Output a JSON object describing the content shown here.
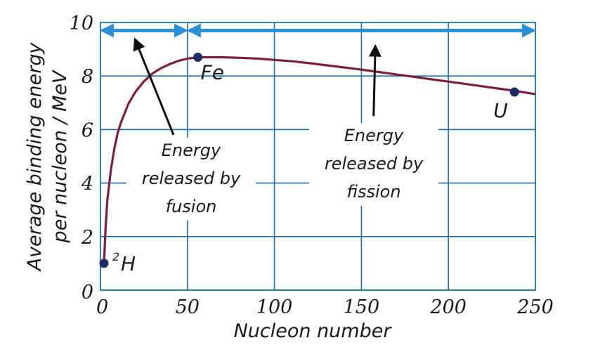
{
  "colors": {
    "grid": "#1f6fa8",
    "curve": "#7a1f3d",
    "point": "#1f2a6b",
    "range_arrow": "#2b8fd6",
    "annotation_arrow": "#111111"
  },
  "chart_data": {
    "type": "line",
    "title": "",
    "xlabel": "Nucleon number",
    "ylabel": [
      "Average binding energy",
      "per nucleon / MeV"
    ],
    "xlim": [
      0,
      250
    ],
    "ylim": [
      0,
      10
    ],
    "x_ticks": [
      "0",
      "50",
      "100",
      "150",
      "200",
      "250"
    ],
    "y_ticks": [
      "0",
      "2",
      "4",
      "6",
      "8",
      "10"
    ],
    "grid": true,
    "series": [
      {
        "name": "binding energy per nucleon",
        "x": [
          2,
          3,
          4,
          6,
          8,
          10,
          12,
          16,
          20,
          25,
          30,
          35,
          40,
          45,
          50,
          56,
          60,
          70,
          80,
          90,
          100,
          110,
          120,
          130,
          140,
          150,
          160,
          170,
          180,
          190,
          200,
          210,
          220,
          230,
          238,
          250
        ],
        "y": [
          1.0,
          2.4,
          3.4,
          4.5,
          5.3,
          5.9,
          6.3,
          6.95,
          7.4,
          7.8,
          8.1,
          8.3,
          8.45,
          8.57,
          8.65,
          8.7,
          8.7,
          8.7,
          8.68,
          8.65,
          8.6,
          8.55,
          8.48,
          8.4,
          8.32,
          8.24,
          8.15,
          8.06,
          7.97,
          7.88,
          7.79,
          7.7,
          7.61,
          7.52,
          7.45,
          7.32
        ]
      }
    ],
    "points": [
      {
        "label": "H",
        "superscript": "2",
        "x": 2,
        "y": 1.0
      },
      {
        "label": "Fe",
        "superscript": "",
        "x": 56,
        "y": 8.7
      },
      {
        "label": "U",
        "superscript": "",
        "x": 238,
        "y": 7.4
      }
    ],
    "ranges": [
      {
        "name": "fusion",
        "x_from": 0,
        "x_to": 50,
        "y": 9.7
      },
      {
        "name": "fission",
        "x_from": 50,
        "x_to": 250,
        "y": 9.7
      }
    ],
    "annotations": [
      {
        "name": "fusion",
        "lines": [
          "Energy",
          "released by",
          "fusion"
        ],
        "arrow_from": [
          42,
          5.8
        ],
        "arrow_to": [
          20,
          9.35
        ]
      },
      {
        "name": "fission",
        "lines": [
          "Energy",
          "released by",
          "fission"
        ],
        "arrow_from": [
          157,
          6.5
        ],
        "arrow_to": [
          158,
          9.1
        ]
      }
    ]
  }
}
